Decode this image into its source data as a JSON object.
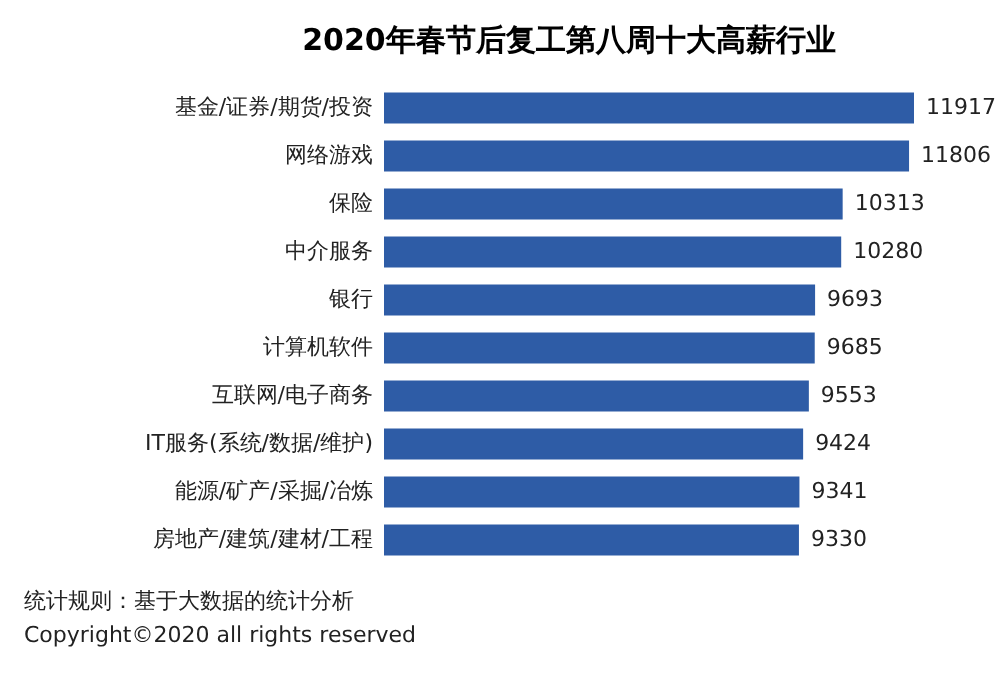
{
  "chart_data": {
    "type": "bar",
    "orientation": "horizontal",
    "title": "2020年春节后复工第八周十大高薪行业",
    "categories": [
      "基金/证券/期货/投资",
      "网络游戏",
      "保险",
      "中介服务",
      "银行",
      "计算机软件",
      "互联网/电子商务",
      "IT服务(系统/数据/维护)",
      "能源/矿产/采掘/冶炼",
      "房地产/建筑/建材/工程"
    ],
    "values": [
      11917,
      11806,
      10313,
      10280,
      9693,
      9685,
      9553,
      9424,
      9341,
      9330
    ],
    "color": "#2e5ca6",
    "data_labels": true,
    "annotations": [
      "统计规则：基于大数据的统计分析",
      "Copyright©2020 all rights reserved"
    ]
  }
}
